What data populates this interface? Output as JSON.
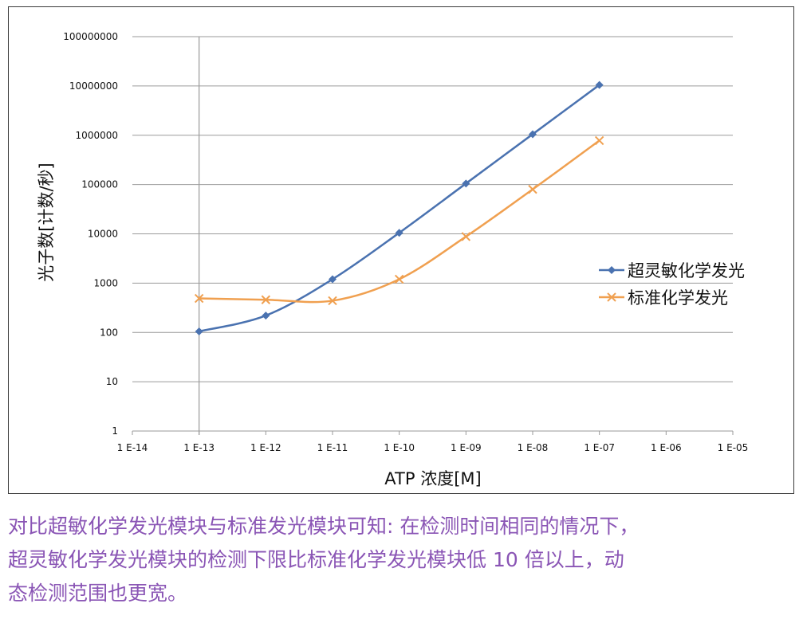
{
  "chart_data": {
    "type": "line",
    "title": "",
    "xlabel": "ATP 浓度[M]",
    "ylabel": "光子数[计数/秒]",
    "x_scale": "log",
    "y_scale": "log",
    "xlim": [
      1e-14,
      1e-05
    ],
    "ylim": [
      1,
      100000000
    ],
    "grid": "horizontal",
    "legend_position": "right",
    "x_tick_labels": [
      "1 E-14",
      "1 E-13",
      "1 E-12",
      "1 E-11",
      "1 E-10",
      "1 E-09",
      "1 E-08",
      "1 E-07",
      "1 E-06",
      "1 E-05"
    ],
    "y_tick_labels": [
      "1",
      "10",
      "100",
      "1000",
      "10000",
      "100000",
      "1000000",
      "10000000",
      "100000000"
    ],
    "series": [
      {
        "name": "超灵敏化学发光",
        "color": "#4a72b0",
        "marker": "diamond",
        "x": [
          1e-13,
          1e-12,
          1e-11,
          1e-10,
          1e-09,
          1e-08,
          1e-07
        ],
        "y": [
          105,
          220,
          1200,
          10500,
          105000,
          1050000,
          10500000
        ]
      },
      {
        "name": "标准化学发光",
        "color": "#f0a050",
        "marker": "x",
        "x": [
          1e-13,
          1e-12,
          1e-11,
          1e-10,
          1e-09,
          1e-08,
          1e-07
        ],
        "y": [
          490,
          460,
          440,
          1200,
          8800,
          80000,
          780000
        ]
      }
    ]
  },
  "caption": {
    "line1": "对比超敏化学发光模块与标准发光模块可知: 在检测时间相同的情况下，",
    "line2": "超灵敏化学发光模块的检测下限比标准化学发光模块低  10  倍以上，动",
    "line3": "态检测范围也更宽。"
  }
}
